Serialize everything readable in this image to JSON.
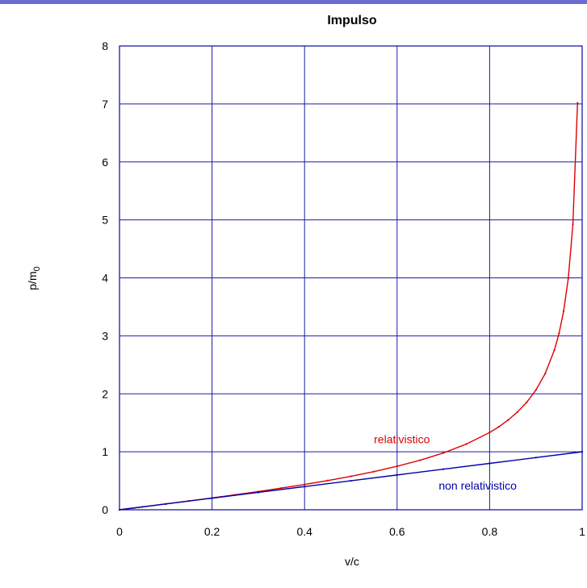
{
  "chart_data": {
    "type": "line",
    "title": "Impulso",
    "xlabel": "v/c",
    "ylabel_main": "p/m",
    "ylabel_sub": "0",
    "xlim": [
      0,
      1
    ],
    "ylim": [
      0,
      8
    ],
    "xticks": [
      0,
      0.2,
      0.4,
      0.6,
      0.8,
      1
    ],
    "xtick_labels": [
      "0",
      "0.2",
      "0.4",
      "0.6",
      "0.8",
      "1"
    ],
    "yticks": [
      0,
      1,
      2,
      3,
      4,
      5,
      6,
      7,
      8
    ],
    "ytick_labels": [
      "0",
      "1",
      "2",
      "3",
      "4",
      "5",
      "6",
      "7",
      "8"
    ],
    "grid": true,
    "series": [
      {
        "name": "relativistico",
        "color": "#dd0000",
        "x": [
          0,
          0.05,
          0.1,
          0.15,
          0.2,
          0.25,
          0.3,
          0.35,
          0.4,
          0.45,
          0.5,
          0.55,
          0.6,
          0.65,
          0.7,
          0.75,
          0.8,
          0.82,
          0.84,
          0.86,
          0.88,
          0.9,
          0.92,
          0.94,
          0.95,
          0.96,
          0.97,
          0.98,
          0.99
        ],
        "y": [
          0,
          0.05,
          0.101,
          0.152,
          0.204,
          0.258,
          0.314,
          0.374,
          0.436,
          0.504,
          0.577,
          0.658,
          0.75,
          0.855,
          0.98,
          1.134,
          1.333,
          1.431,
          1.548,
          1.685,
          1.852,
          2.065,
          2.347,
          2.755,
          3.042,
          3.428,
          3.99,
          4.925,
          7.018
        ]
      },
      {
        "name": "non relativistico",
        "color": "#0000aa",
        "x": [
          0,
          0.1,
          0.2,
          0.3,
          0.4,
          0.5,
          0.6,
          0.7,
          0.8,
          0.9,
          1
        ],
        "y": [
          0,
          0.1,
          0.2,
          0.3,
          0.4,
          0.5,
          0.6,
          0.7,
          0.8,
          0.9,
          1
        ]
      }
    ],
    "annotations": [
      {
        "text": "relativistico",
        "x": 0.55,
        "y": 1.15,
        "color": "#dd0000"
      },
      {
        "text": "non relativistico",
        "x": 0.69,
        "y": 0.35,
        "color": "#0000aa"
      }
    ]
  }
}
